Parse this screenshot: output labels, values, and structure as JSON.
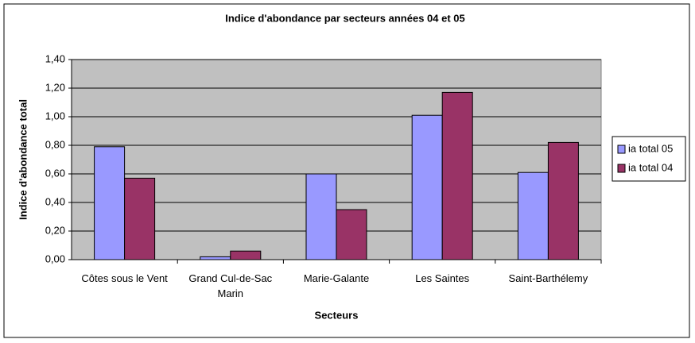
{
  "chart_data": {
    "type": "bar",
    "title": "Indice d'abondance par secteurs années 04 et 05",
    "x_label": "Secteurs",
    "y_label": "Indice d'abondance total",
    "categories": [
      "Côtes sous le Vent",
      "Grand Cul-de-Sac Marin",
      "Marie-Galante",
      "Les Saintes",
      "Saint-Barthélemy"
    ],
    "series": [
      {
        "name": "ia total 05",
        "color": "#9999ff",
        "values": [
          0.79,
          0.02,
          0.6,
          1.01,
          0.61
        ]
      },
      {
        "name": "ia total 04",
        "color": "#993366",
        "values": [
          0.57,
          0.06,
          0.35,
          1.17,
          0.82
        ]
      }
    ],
    "ylim": [
      0,
      1.4
    ],
    "yticks": [
      {
        "value": 0,
        "label": "0,00"
      },
      {
        "value": 0.2,
        "label": "0,20"
      },
      {
        "value": 0.4,
        "label": "0,40"
      },
      {
        "value": 0.6,
        "label": "0,60"
      },
      {
        "value": 0.8,
        "label": "0,80"
      },
      {
        "value": 1.0,
        "label": "1,00"
      },
      {
        "value": 1.2,
        "label": "1,20"
      },
      {
        "value": 1.4,
        "label": "1,40"
      }
    ],
    "grid": true,
    "legend": "right"
  }
}
